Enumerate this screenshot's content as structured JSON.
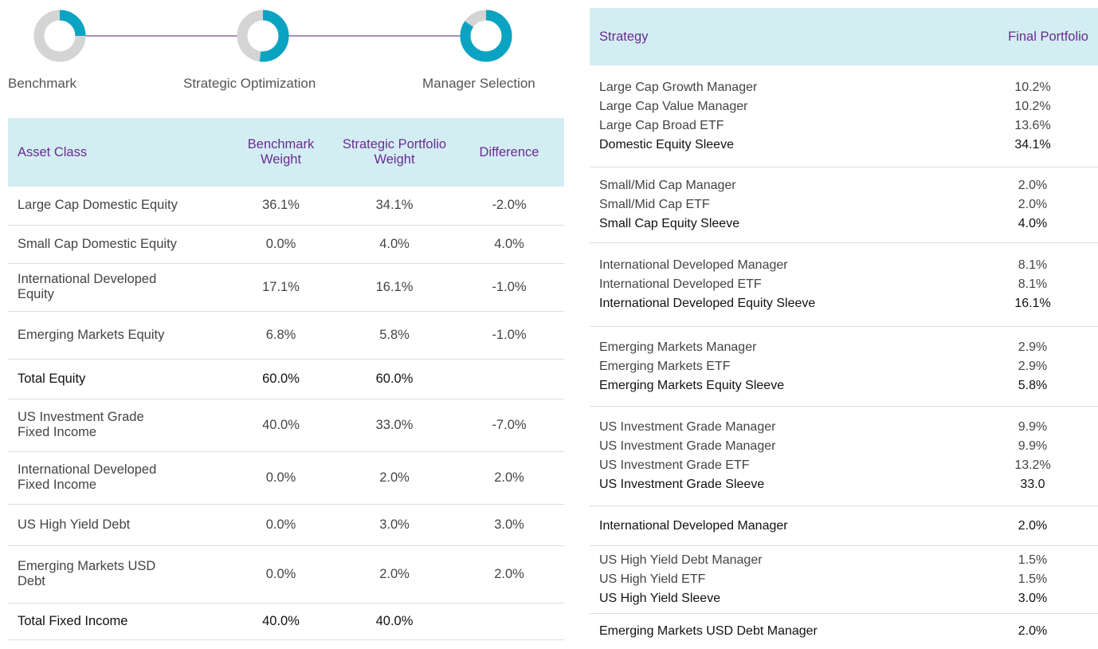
{
  "steps": [
    {
      "label": "Benchmark"
    },
    {
      "label": "Strategic Optimization"
    },
    {
      "label": "Manager Selection"
    }
  ],
  "asset_table": {
    "headers": [
      "Asset Class",
      "Benchmark Weight",
      "Strategic Portfolio Weight",
      "Difference"
    ],
    "rows": [
      {
        "cells": [
          "Large Cap Domestic Equity",
          "36.1%",
          "34.1%",
          "-2.0%"
        ]
      },
      {
        "cells": [
          "Small Cap Domestic Equity",
          "0.0%",
          "4.0%",
          "4.0%"
        ]
      },
      {
        "cells": [
          "International Developed Equity",
          "17.1%",
          "16.1%",
          "-1.0%"
        ]
      },
      {
        "cells": [
          "Emerging Markets Equity",
          "6.8%",
          "5.8%",
          "-1.0%"
        ]
      },
      {
        "cells": [
          "Total Equity",
          "60.0%",
          "60.0%"
        ],
        "bold": true
      },
      {
        "cells": [
          "US Investment Grade Fixed Income",
          "40.0%",
          "33.0%",
          "-7.0%"
        ]
      },
      {
        "cells": [
          "International Developed Fixed Income",
          "0.0%",
          "2.0%",
          "2.0%"
        ]
      },
      {
        "cells": [
          "US High Yield Debt",
          "0.0%",
          "3.0%",
          "3.0%"
        ]
      },
      {
        "cells": [
          "Emerging Markets USD Debt",
          "0.0%",
          "2.0%",
          "2.0%"
        ]
      },
      {
        "cells": [
          "Total Fixed Income",
          "40.0%",
          "40.0%"
        ],
        "bold": true
      }
    ]
  },
  "strategy_table": {
    "headers": [
      "Strategy",
      "Final Portfolio"
    ],
    "groups": [
      [
        {
          "name": "Large Cap Growth Manager",
          "value": "10.2%"
        },
        {
          "name": "Large Cap Value Manager",
          "value": "10.2%"
        },
        {
          "name": "Large Cap Broad ETF",
          "value": "13.6%"
        },
        {
          "name": "Domestic Equity Sleeve",
          "value": "34.1%",
          "bold": true
        }
      ],
      [
        {
          "name": "Small/Mid Cap Manager",
          "value": "2.0%"
        },
        {
          "name": "Small/Mid Cap ETF",
          "value": "2.0%"
        },
        {
          "name": "Small Cap Equity Sleeve",
          "value": "4.0%",
          "bold": true
        }
      ],
      [
        {
          "name": "International Developed Manager",
          "value": "8.1%"
        },
        {
          "name": "International Developed ETF",
          "value": "8.1%"
        },
        {
          "name": "International Developed Equity Sleeve",
          "value": "16.1%",
          "bold": true
        }
      ],
      [
        {
          "name": "Emerging Markets Manager",
          "value": "2.9%"
        },
        {
          "name": "Emerging Markets ETF",
          "value": "2.9%"
        },
        {
          "name": "Emerging Markets Equity Sleeve",
          "value": "5.8%",
          "bold": true
        }
      ],
      [
        {
          "name": "US Investment Grade Manager",
          "value": "9.9%"
        },
        {
          "name": "US Investment Grade Manager",
          "value": "9.9%"
        },
        {
          "name": "US Investment Grade ETF",
          "value": "13.2%"
        },
        {
          "name": "US Investment Grade Sleeve",
          "value": "33.0",
          "bold": true
        }
      ],
      [
        {
          "name": "International Developed Manager",
          "value": "2.0%",
          "bold": true
        }
      ],
      [
        {
          "name": "US High Yield Debt Manager",
          "value": "1.5%"
        },
        {
          "name": "US High Yield ETF",
          "value": "1.5%"
        },
        {
          "name": "US High Yield Sleeve",
          "value": "3.0%",
          "bold": true
        }
      ],
      [
        {
          "name": "Emerging Markets USD Debt Manager",
          "value": "2.0%",
          "bold": true
        }
      ]
    ]
  }
}
